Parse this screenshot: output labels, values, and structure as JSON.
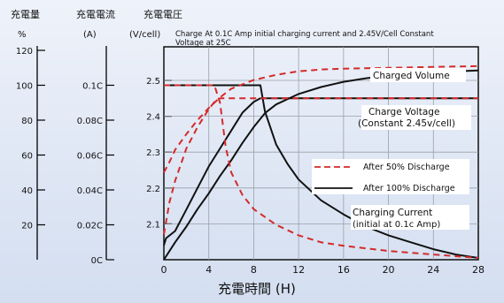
{
  "chart_data": {
    "type": "line",
    "title": "Charge At 0.1C Amp initial charging current  and 2.45V/Cell Constant Voltage  at 25C",
    "xlabel": "充電時間 (H)",
    "x_ticks": [
      0,
      4,
      8,
      12,
      16,
      20,
      24,
      28
    ],
    "xlim": [
      0,
      28
    ],
    "left_axes": [
      {
        "header": "充電量",
        "unit": "%",
        "ticks": [
          {
            "value": 120,
            "label": "120"
          },
          {
            "value": 100,
            "label": "100"
          },
          {
            "value": 80,
            "label": "80"
          },
          {
            "value": 60,
            "label": "60"
          },
          {
            "value": 40,
            "label": "40"
          },
          {
            "value": 20,
            "label": "20"
          }
        ]
      },
      {
        "header": "充電電流",
        "unit": "(A)",
        "ticks": [
          {
            "value": 0.1,
            "label": "0.1C"
          },
          {
            "value": 0.08,
            "label": "0.08C"
          },
          {
            "value": 0.06,
            "label": "0.06C"
          },
          {
            "value": 0.04,
            "label": "0.04C"
          },
          {
            "value": 0.02,
            "label": "0.02C"
          },
          {
            "value": 0,
            "label": "0C"
          }
        ]
      },
      {
        "header": "充電電圧",
        "unit": "(V/cell)",
        "ticks": [
          {
            "value": 2.5,
            "label": "2.5"
          },
          {
            "value": 2.4,
            "label": "2.4"
          },
          {
            "value": 2.3,
            "label": "2.3"
          },
          {
            "value": 2.2,
            "label": "2.2"
          },
          {
            "value": 2.1,
            "label": "2.1"
          }
        ]
      }
    ],
    "grid": true,
    "legend": [
      {
        "label": "After 50% Discharge",
        "style": "dashed",
        "color": "#d42a2a"
      },
      {
        "label": "After 100% Discharge",
        "style": "solid",
        "color": "#111111"
      }
    ],
    "annotations": [
      {
        "text": "Charged Volume"
      },
      {
        "text": "Charge Voltage"
      },
      {
        "text": "(Constant 2.45v/cell)"
      },
      {
        "text": "Charging Current"
      },
      {
        "text": "(initial at 0.1c Amp)"
      }
    ],
    "scale": {
      "voltage_min": 2.0,
      "voltage_max": 2.5,
      "voltage_top": 2.6
    },
    "series": [
      {
        "group": "After 100% Discharge",
        "style": "solid",
        "color": "#111111",
        "quantity": "Charged Volume",
        "axis": "percent",
        "x": [
          0,
          1,
          2,
          3,
          4,
          5,
          6,
          7,
          8,
          9,
          10,
          12,
          14,
          16,
          18,
          20,
          22,
          24,
          26,
          28
        ],
        "y": [
          0,
          10,
          19,
          29,
          38,
          48,
          57,
          67,
          76,
          84,
          89,
          95,
          99,
          102,
          104,
          105.5,
          106.5,
          107.5,
          108,
          108.5
        ]
      },
      {
        "group": "After 100% Discharge",
        "style": "solid",
        "color": "#111111",
        "quantity": "Charge Voltage",
        "axis": "voltage",
        "x": [
          0,
          0.2,
          1,
          2,
          3,
          4,
          5,
          6,
          7,
          8,
          8.6,
          9,
          10,
          12,
          16,
          20,
          24,
          28
        ],
        "y": [
          2.04,
          2.06,
          2.08,
          2.14,
          2.2,
          2.26,
          2.31,
          2.36,
          2.41,
          2.44,
          2.45,
          2.45,
          2.45,
          2.45,
          2.45,
          2.45,
          2.45,
          2.45
        ]
      },
      {
        "group": "After 100% Discharge",
        "style": "solid",
        "color": "#111111",
        "quantity": "Charging Current",
        "axis": "current",
        "x": [
          0,
          1,
          2,
          4,
          6,
          8,
          8.6,
          9,
          10,
          11,
          12,
          14,
          16,
          18,
          20,
          22,
          24,
          26,
          28
        ],
        "y": [
          0.1,
          0.1,
          0.1,
          0.1,
          0.1,
          0.1,
          0.1,
          0.085,
          0.066,
          0.055,
          0.046,
          0.034,
          0.026,
          0.019,
          0.014,
          0.01,
          0.006,
          0.003,
          0.001
        ]
      },
      {
        "group": "After 50% Discharge",
        "style": "dashed",
        "color": "#d42a2a",
        "quantity": "Charged Volume",
        "axis": "percent",
        "x": [
          0,
          0.5,
          1,
          2,
          3,
          4,
          5,
          6,
          8,
          10,
          12,
          14,
          16,
          20,
          24,
          28
        ],
        "y": [
          50,
          56,
          63,
          72,
          80,
          87,
          93,
          98,
          103,
          106,
          108,
          109,
          109.5,
          110,
          110.5,
          111
        ]
      },
      {
        "group": "After 50% Discharge",
        "style": "dashed",
        "color": "#d42a2a",
        "quantity": "Charge Voltage",
        "axis": "voltage",
        "x": [
          0,
          0.5,
          1,
          2,
          3,
          4,
          4.5,
          5,
          6,
          8,
          12,
          16,
          20,
          24,
          28
        ],
        "y": [
          2.07,
          2.16,
          2.22,
          2.31,
          2.37,
          2.42,
          2.44,
          2.45,
          2.45,
          2.45,
          2.45,
          2.45,
          2.45,
          2.45,
          2.45
        ]
      },
      {
        "group": "After 50% Discharge",
        "style": "dashed",
        "color": "#d42a2a",
        "quantity": "Charging Current",
        "axis": "current",
        "x": [
          0,
          1,
          2,
          3,
          4,
          4.5,
          5,
          5.5,
          6,
          7,
          8,
          10,
          12,
          14,
          16,
          20,
          24,
          28
        ],
        "y": [
          0.1,
          0.1,
          0.1,
          0.1,
          0.1,
          0.1,
          0.09,
          0.065,
          0.05,
          0.037,
          0.029,
          0.02,
          0.014,
          0.01,
          0.008,
          0.005,
          0.003,
          0.001
        ]
      }
    ]
  }
}
